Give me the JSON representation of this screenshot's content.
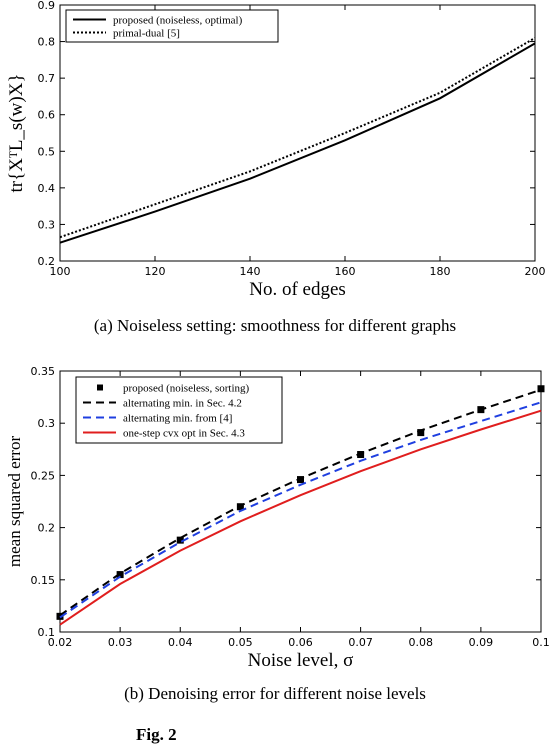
{
  "figure": {
    "caption_a": "(a) Noiseless setting: smoothness for different graphs",
    "caption_b": "(b) Denoising error for different noise levels",
    "fig_label": "Fig. 2"
  },
  "chart_data": [
    {
      "type": "line",
      "xlabel": "No. of edges",
      "ylabel": "tr{XᵀL_s(w)X}",
      "xlim": [
        100,
        200
      ],
      "ylim": [
        0.2,
        0.9
      ],
      "xticks": [
        100,
        120,
        140,
        160,
        180,
        200
      ],
      "yticks": [
        0.2,
        0.3,
        0.4,
        0.5,
        0.6,
        0.7,
        0.8,
        0.9
      ],
      "grid": false,
      "legend_position": "top-left",
      "series": [
        {
          "name": "proposed (noiseless, optimal)",
          "x": [
            100,
            120,
            140,
            160,
            180,
            200
          ],
          "y": [
            0.25,
            0.335,
            0.425,
            0.53,
            0.645,
            0.795
          ],
          "color": "#000000",
          "style": "solid"
        },
        {
          "name": "primal-dual [5]",
          "x": [
            100,
            120,
            140,
            160,
            180,
            200
          ],
          "y": [
            0.265,
            0.355,
            0.445,
            0.55,
            0.66,
            0.81
          ],
          "color": "#000000",
          "style": "dotted"
        }
      ]
    },
    {
      "type": "line",
      "xlabel": "Noise level, σ",
      "ylabel": "mean squared error",
      "xlim": [
        0.02,
        0.1
      ],
      "ylim": [
        0.1,
        0.35
      ],
      "xticks": [
        "0.02",
        "0.03",
        "0.04",
        "0.05",
        "0.06",
        "0.07",
        "0.08",
        "0.09",
        "0.1"
      ],
      "yticks": [
        "0.1",
        "0.15",
        "0.2",
        "0.25",
        "0.3",
        "0.35"
      ],
      "grid": false,
      "legend_position": "top-left",
      "series": [
        {
          "name": "proposed (noiseless, sorting)",
          "x": [
            0.02,
            0.03,
            0.04,
            0.05,
            0.06,
            0.07,
            0.08,
            0.09,
            0.1
          ],
          "y": [
            0.115,
            0.155,
            0.188,
            0.22,
            0.246,
            0.27,
            0.291,
            0.313,
            0.333
          ],
          "color": "#000000",
          "style": "markers"
        },
        {
          "name": "alternating min. in Sec. 4.2",
          "x": [
            0.02,
            0.03,
            0.04,
            0.05,
            0.06,
            0.07,
            0.08,
            0.09,
            0.1
          ],
          "y": [
            0.116,
            0.156,
            0.19,
            0.221,
            0.247,
            0.271,
            0.293,
            0.313,
            0.332
          ],
          "color": "#000000",
          "style": "dashed"
        },
        {
          "name": "alternating min. from [4]",
          "x": [
            0.02,
            0.03,
            0.04,
            0.05,
            0.06,
            0.07,
            0.08,
            0.09,
            0.1
          ],
          "y": [
            0.114,
            0.153,
            0.186,
            0.216,
            0.241,
            0.264,
            0.284,
            0.302,
            0.32
          ],
          "color": "#1f3fe0",
          "style": "dashed"
        },
        {
          "name": "one-step cvx opt in Sec. 4.3",
          "x": [
            0.02,
            0.03,
            0.04,
            0.05,
            0.06,
            0.07,
            0.08,
            0.09,
            0.1
          ],
          "y": [
            0.107,
            0.146,
            0.178,
            0.206,
            0.231,
            0.254,
            0.275,
            0.294,
            0.312
          ],
          "color": "#e01e1e",
          "style": "solid"
        }
      ]
    }
  ]
}
